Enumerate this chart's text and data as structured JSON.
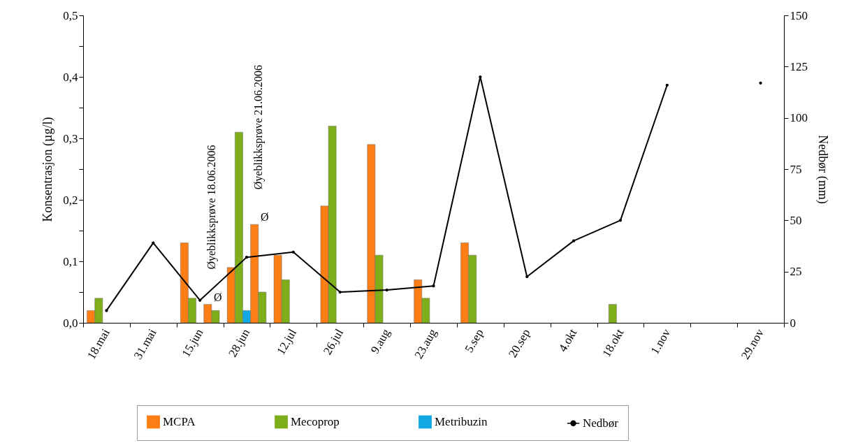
{
  "chart_data": {
    "type": "bar",
    "ylabel": "Konsentrasjon (µg/l)",
    "y2label": "Nedbør (mm)",
    "categories": [
      "18.mai",
      "31.mai",
      "15.jun",
      "28.jun",
      "12.jul",
      "26.jul",
      "9.aug",
      "23.aug",
      "5.sep",
      "20.sep",
      "4.okt",
      "18.okt",
      "1.nov",
      null,
      "29.nov"
    ],
    "series": [
      {
        "name": "MCPA",
        "color": "#fd7e14",
        "values": [
          0.02,
          null,
          0.13,
          0.09,
          0.11,
          0.19,
          0.29,
          0.07,
          0.13,
          null,
          null,
          null,
          null,
          null,
          null
        ]
      },
      {
        "name": "Mecoprop",
        "color": "#7fae1b",
        "values": [
          0.04,
          null,
          0.04,
          0.31,
          0.07,
          0.32,
          0.11,
          0.04,
          0.11,
          null,
          null,
          0.03,
          null,
          null,
          null
        ]
      },
      {
        "name": "Metribuzin",
        "color": "#12a9e3",
        "values": [
          null,
          null,
          null,
          0.02,
          null,
          null,
          null,
          null,
          null,
          null,
          null,
          null,
          null,
          null,
          null
        ]
      },
      {
        "color": "#fd7e14",
        "values": [
          null,
          null,
          0.03,
          0.16,
          null,
          null,
          null,
          null,
          null,
          null,
          null,
          null,
          null,
          null,
          null
        ]
      },
      {
        "color": "#7fae1b",
        "values": [
          null,
          null,
          0.02,
          0.05,
          null,
          null,
          null,
          null,
          null,
          null,
          null,
          null,
          null,
          null,
          null
        ]
      },
      {
        "name": "Nedbør",
        "type": "line",
        "axis": "y2",
        "color": "#000000",
        "values": [
          6,
          39,
          11,
          32,
          34.5,
          15,
          16,
          18,
          120,
          22.5,
          40,
          50,
          116,
          null,
          117
        ]
      }
    ],
    "ylim": [
      0,
      0.5
    ],
    "yticks": [
      {
        "value": 0,
        "label": "0,0"
      },
      {
        "value": 0.05,
        "label": null
      },
      {
        "value": 0.1,
        "label": "0,1"
      },
      {
        "value": 0.15,
        "label": null
      },
      {
        "value": 0.2,
        "label": "0,2"
      },
      {
        "value": 0.25,
        "label": null
      },
      {
        "value": 0.3,
        "label": "0,3"
      },
      {
        "value": 0.35,
        "label": null
      },
      {
        "value": 0.4,
        "label": "0,4"
      },
      {
        "value": 0.45,
        "label": null
      },
      {
        "value": 0.5,
        "label": "0,5"
      }
    ],
    "y2lim": [
      0,
      150
    ],
    "y2ticks": [
      0,
      25,
      50,
      75,
      100,
      125,
      150
    ],
    "annotations": [
      "Øyeblikksprøve 18.06.2006",
      {
        "text": "Ø",
        "x": "15.jun",
        "y": 0.03
      },
      "Øyeblikksprøve 21.06.2006",
      {
        "text": "Ø",
        "x": "28.jun",
        "y": 0.16
      }
    ],
    "grid": false,
    "legend": "bottom",
    "marker": "circle",
    "line_style": "solid"
  }
}
